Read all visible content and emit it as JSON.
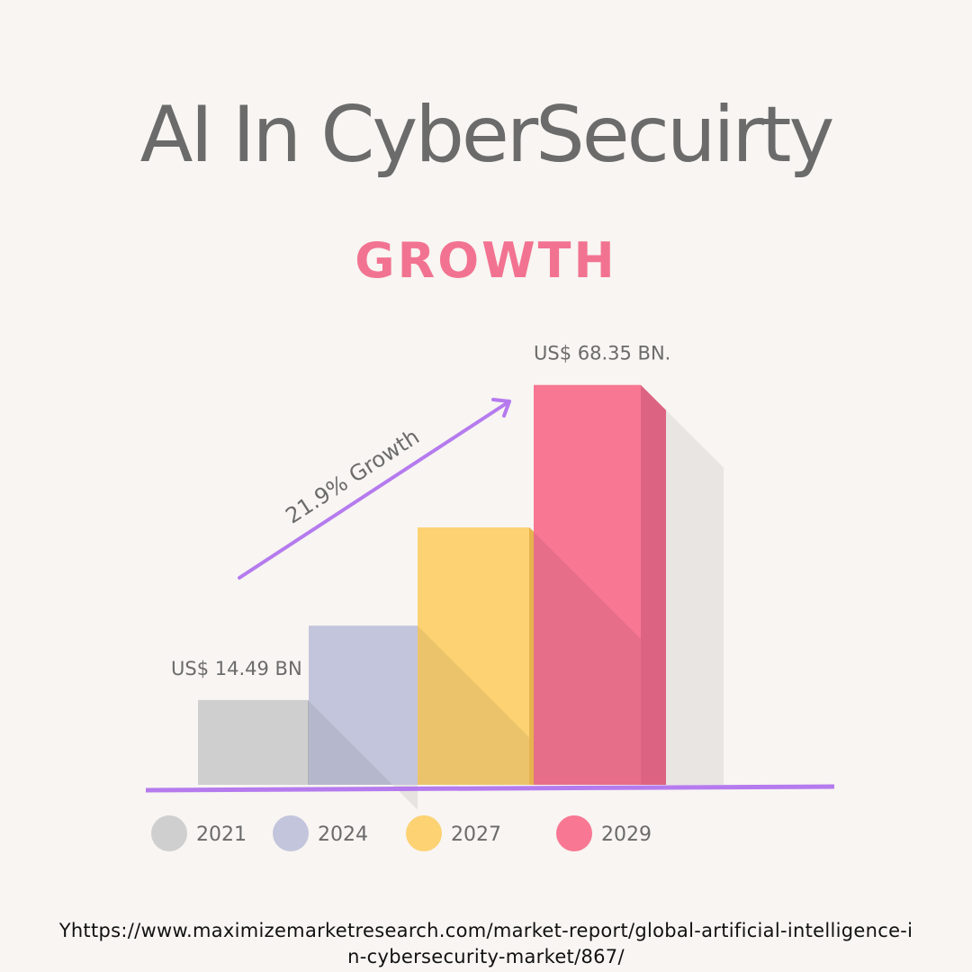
{
  "title": "AI In CyberSecuirty",
  "subtitle": "GROWTH",
  "source": "Yhttps://www.maximizemarketresearch.com/market-report/global-artificial-intelligence-in-cybersecurity-market/867/",
  "chart_data": {
    "type": "bar",
    "categories": [
      "2021",
      "2024",
      "2027",
      "2029"
    ],
    "values": [
      14.49,
      27.2,
      44.0,
      68.35
    ],
    "unit": "US$ BN",
    "ylim": [
      0,
      80
    ],
    "grid": false,
    "legend": "bottom",
    "data_labels": [
      "US$ 14.49 BN",
      "",
      "",
      "US$ 68.35 BN."
    ],
    "annotation": "21.9% Growth",
    "colors": [
      "#cfcfcf",
      "#c3c5dc",
      "#fdd273",
      "#f87793"
    ],
    "side_colors": [
      "#b0b0b0",
      "#a9abc8",
      "#e6b34f",
      "#dc6482"
    ],
    "shadow_colors": [
      "#b8b9ca",
      "#ecc66c",
      "#e86e87",
      "#e9e5e2"
    ],
    "axis_color": "#b57bee",
    "legend_text_color": "#6b6b6b"
  }
}
